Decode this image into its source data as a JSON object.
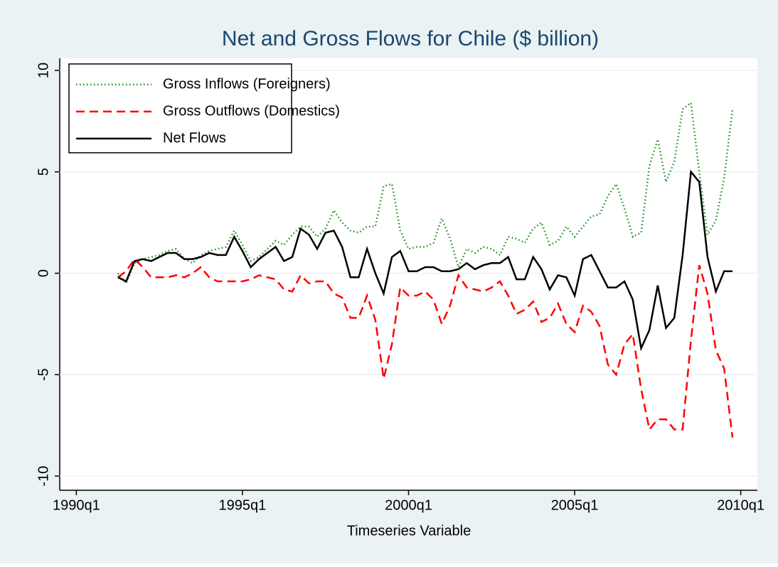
{
  "chart_data": {
    "type": "line",
    "title": "Net and Gross Flows for Chile ($ billion)",
    "x_label": "Timeseries Variable",
    "x": [
      "1991q2",
      "1991q3",
      "1991q4",
      "1992q1",
      "1992q2",
      "1992q3",
      "1992q4",
      "1993q1",
      "1993q2",
      "1993q3",
      "1993q4",
      "1994q1",
      "1994q2",
      "1994q3",
      "1994q4",
      "1995q1",
      "1995q2",
      "1995q3",
      "1995q4",
      "1996q1",
      "1996q2",
      "1996q3",
      "1996q4",
      "1997q1",
      "1997q2",
      "1997q3",
      "1997q4",
      "1998q1",
      "1998q2",
      "1998q3",
      "1998q4",
      "1999q1",
      "1999q2",
      "1999q3",
      "1999q4",
      "2000q1",
      "2000q2",
      "2000q3",
      "2000q4",
      "2001q1",
      "2001q2",
      "2001q3",
      "2001q4",
      "2002q1",
      "2002q2",
      "2002q3",
      "2002q4",
      "2003q1",
      "2003q2",
      "2003q3",
      "2003q4",
      "2004q1",
      "2004q2",
      "2004q3",
      "2004q4",
      "2005q1",
      "2005q2",
      "2005q3",
      "2005q4",
      "2006q1",
      "2006q2",
      "2006q3",
      "2006q4",
      "2007q1",
      "2007q2",
      "2007q3",
      "2007q4",
      "2008q1",
      "2008q2",
      "2008q3",
      "2008q4",
      "2009q1",
      "2009q2",
      "2009q3",
      "2009q4"
    ],
    "series": [
      {
        "name": "Gross Inflows (Foreigners)",
        "color": "#1a8c1a",
        "dash": "1.5 3.5",
        "values": [
          0.0,
          -0.5,
          0.5,
          0.7,
          0.8,
          0.9,
          1.1,
          1.2,
          0.7,
          0.5,
          0.9,
          1.1,
          1.2,
          1.3,
          2.1,
          1.4,
          0.6,
          0.8,
          1.2,
          1.6,
          1.4,
          1.9,
          2.3,
          2.3,
          1.8,
          2.2,
          3.1,
          2.5,
          2.1,
          2.0,
          2.3,
          2.3,
          4.3,
          4.4,
          2.1,
          1.2,
          1.3,
          1.3,
          1.5,
          2.7,
          1.7,
          0.3,
          1.2,
          1.0,
          1.3,
          1.2,
          0.9,
          1.8,
          1.7,
          1.5,
          2.2,
          2.5,
          1.4,
          1.6,
          2.3,
          1.8,
          2.3,
          2.8,
          2.9,
          3.8,
          4.4,
          3.2,
          1.8,
          2.0,
          5.3,
          6.6,
          4.5,
          5.5,
          8.1,
          8.4,
          5.0,
          1.9,
          2.6,
          4.7,
          8.1
        ]
      },
      {
        "name": "Gross Outflows (Domestics)",
        "color": "#ff0000",
        "dash": "12 7",
        "values": [
          -0.2,
          0.1,
          0.7,
          0.3,
          -0.2,
          -0.2,
          -0.2,
          -0.1,
          -0.2,
          0.0,
          0.3,
          -0.2,
          -0.4,
          -0.4,
          -0.4,
          -0.4,
          -0.3,
          -0.1,
          -0.2,
          -0.3,
          -0.8,
          -0.9,
          -0.1,
          -0.5,
          -0.4,
          -0.4,
          -1.0,
          -1.2,
          -2.2,
          -2.2,
          -1.1,
          -2.3,
          -5.2,
          -3.5,
          -0.7,
          -1.1,
          -1.1,
          -0.9,
          -1.3,
          -2.5,
          -1.6,
          -0.1,
          -0.7,
          -0.8,
          -0.9,
          -0.7,
          -0.4,
          -1.1,
          -2.0,
          -1.8,
          -1.4,
          -2.4,
          -2.2,
          -1.5,
          -2.5,
          -2.9,
          -1.6,
          -1.9,
          -2.6,
          -4.5,
          -5.0,
          -3.5,
          -3.0,
          -5.7,
          -7.7,
          -7.2,
          -7.2,
          -7.7,
          -7.7,
          -3.3,
          0.4,
          -1.0,
          -3.8,
          -4.7,
          -8.1
        ]
      },
      {
        "name": "Net Flows",
        "color": "#000000",
        "dash": "none",
        "values": [
          -0.2,
          -0.4,
          0.6,
          0.7,
          0.6,
          0.8,
          1.0,
          1.0,
          0.7,
          0.7,
          0.8,
          1.0,
          0.9,
          0.9,
          1.8,
          1.1,
          0.3,
          0.7,
          1.0,
          1.3,
          0.6,
          0.8,
          2.2,
          1.9,
          1.2,
          2.0,
          2.1,
          1.3,
          -0.2,
          -0.2,
          1.2,
          0.0,
          -1.0,
          0.8,
          1.1,
          0.1,
          0.1,
          0.3,
          0.3,
          0.1,
          0.1,
          0.2,
          0.5,
          0.2,
          0.4,
          0.5,
          0.5,
          0.8,
          -0.3,
          -0.3,
          0.8,
          0.2,
          -0.8,
          -0.1,
          -0.2,
          -1.1,
          0.7,
          0.9,
          0.1,
          -0.7,
          -0.7,
          -0.4,
          -1.3,
          -3.7,
          -2.8,
          -0.6,
          -2.7,
          -2.2,
          0.9,
          5.0,
          4.5,
          0.8,
          -0.9,
          0.1,
          0.1
        ]
      }
    ],
    "xlim": [
      "1989q3",
      "2010q3"
    ],
    "xticks": [
      "1990q1",
      "1995q1",
      "2000q1",
      "2005q1",
      "2010q1"
    ],
    "ylim": [
      -10.7,
      10.6
    ],
    "yticks": [
      -10,
      -5,
      0,
      5,
      10
    ],
    "grid": true
  }
}
